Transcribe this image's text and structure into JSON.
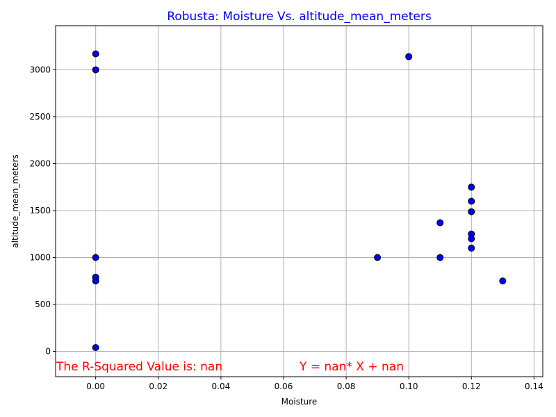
{
  "chart_data": {
    "type": "scatter",
    "title": "Robusta: Moisture Vs. altitude_mean_meters",
    "xlabel": "Moisture",
    "ylabel": "altitude_mean_meters",
    "xlim": [
      -0.0128,
      0.1428
    ],
    "ylim": [
      -270,
      3470
    ],
    "xticks": [
      0.0,
      0.02,
      0.04,
      0.06,
      0.08,
      0.1,
      0.12,
      0.14
    ],
    "xtick_labels": [
      "0.00",
      "0.02",
      "0.04",
      "0.06",
      "0.08",
      "0.10",
      "0.12",
      "0.14"
    ],
    "yticks": [
      0,
      500,
      1000,
      1500,
      2000,
      2500,
      3000
    ],
    "ytick_labels": [
      "0",
      "500",
      "1000",
      "1500",
      "2000",
      "2500",
      "3000"
    ],
    "grid": true,
    "points": [
      {
        "x": 0.0,
        "y": 3170
      },
      {
        "x": 0.0,
        "y": 3000
      },
      {
        "x": 0.0,
        "y": 1000
      },
      {
        "x": 0.0,
        "y": 790
      },
      {
        "x": 0.0,
        "y": 750
      },
      {
        "x": 0.0,
        "y": 40
      },
      {
        "x": 0.09,
        "y": 1000
      },
      {
        "x": 0.1,
        "y": 3140
      },
      {
        "x": 0.11,
        "y": 1370
      },
      {
        "x": 0.11,
        "y": 1000
      },
      {
        "x": 0.12,
        "y": 1750
      },
      {
        "x": 0.12,
        "y": 1600
      },
      {
        "x": 0.12,
        "y": 1488
      },
      {
        "x": 0.12,
        "y": 1250
      },
      {
        "x": 0.12,
        "y": 1200
      },
      {
        "x": 0.12,
        "y": 1100
      },
      {
        "x": 0.13,
        "y": 750
      }
    ],
    "annotations": [
      {
        "text": "The R-Squared Value is: nan"
      },
      {
        "text": "Y = nan* X + nan"
      }
    ],
    "colors": {
      "title": "#0000ff",
      "marker_fill": "#0000ff",
      "marker_edge": "#000000",
      "annotation": "#ff0000",
      "grid": "#b0b0b0"
    }
  }
}
